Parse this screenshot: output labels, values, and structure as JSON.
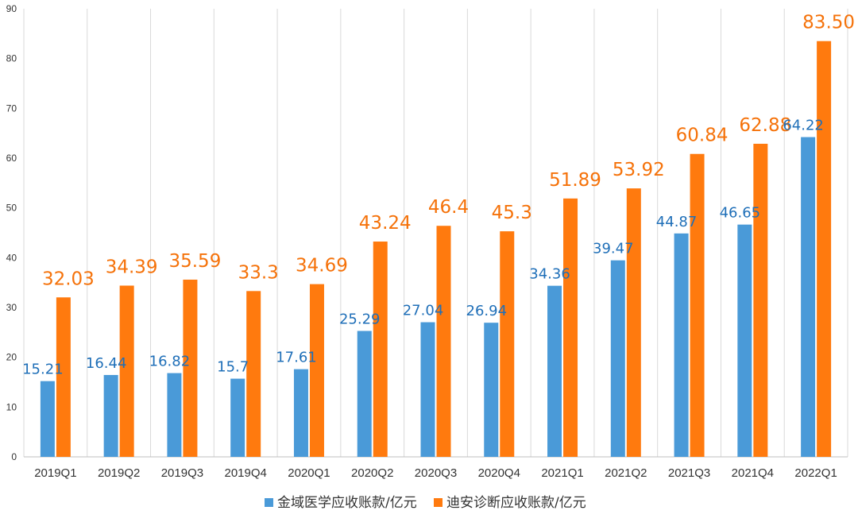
{
  "chart_data": {
    "type": "bar",
    "title": "",
    "xlabel": "",
    "ylabel": "",
    "ylim": [
      0,
      90
    ],
    "yticks": [
      0,
      10,
      20,
      30,
      40,
      50,
      60,
      70,
      80,
      90
    ],
    "grid": "vertical category separators",
    "legend_position": "bottom-center",
    "categories": [
      "2019Q1",
      "2019Q2",
      "2019Q3",
      "2019Q4",
      "2020Q1",
      "2020Q2",
      "2020Q3",
      "2020Q4",
      "2021Q1",
      "2021Q2",
      "2021Q3",
      "2021Q4",
      "2022Q1"
    ],
    "series": [
      {
        "name": "金域医学应收账款/亿元",
        "color": "#4a9ad8",
        "label_color": "#1f6fb8",
        "values": [
          15.21,
          16.44,
          16.82,
          15.7,
          17.61,
          25.29,
          27.04,
          26.94,
          34.36,
          39.47,
          44.87,
          46.65,
          64.22
        ],
        "labels": [
          "15.21",
          "16.44",
          "16.82",
          "15.7",
          "17.61",
          "25.29",
          "27.04",
          "26.94",
          "34.36",
          "39.47",
          "44.87",
          "46.65",
          "64.22"
        ]
      },
      {
        "name": "迪安诊断应收账款/亿元",
        "color": "#ff7a0e",
        "label_color": "#f5720a",
        "values": [
          32.03,
          34.39,
          35.59,
          33.3,
          34.69,
          43.24,
          46.4,
          45.3,
          51.89,
          53.92,
          60.84,
          62.88,
          83.5
        ],
        "labels": [
          "32.03",
          "34.39",
          "35.59",
          "33.3",
          "34.69",
          "43.24",
          "46.4",
          "45.3",
          "51.89",
          "53.92",
          "60.84",
          "62.88",
          "83.50"
        ]
      }
    ]
  }
}
